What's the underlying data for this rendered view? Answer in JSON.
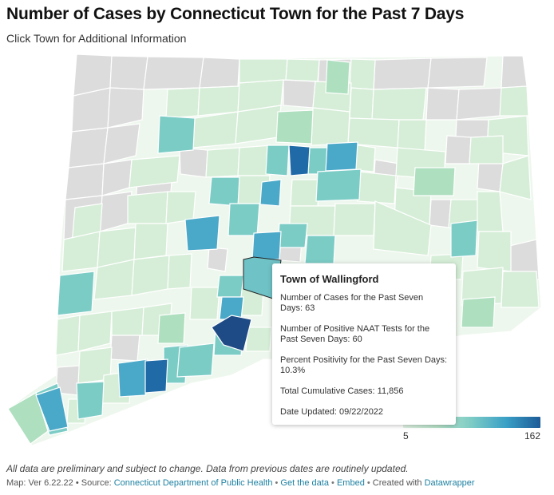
{
  "header": {
    "title": "Number of Cases by Connecticut Town for the Past 7 Days",
    "subtitle": "Click Town for Additional Information"
  },
  "legend": {
    "min_label": "5",
    "max_label": "162",
    "colors": [
      "#dff2e3",
      "#b7e3c9",
      "#7ccbc5",
      "#3aa0c6",
      "#1d5b98"
    ]
  },
  "tooltip": {
    "town": "Town of Wallingford",
    "cases_label": "Number of Cases for the Past Seven Days: 63",
    "naat_label": "Number of Positive NAAT Tests for the Past Seven Days: 60",
    "positivity_label": "Percent Positivity for the Past Seven Days: 10.3%",
    "cumulative_label": "Total Cumulative Cases: 11,856",
    "updated_label": "Date Updated: 09/22/2022"
  },
  "footnote": "All data are preliminary and subject to change. Data from previous dates are routinely updated.",
  "footer": {
    "prefix": "Map: Ver 6.22.22 • Source: ",
    "source_link": "Connecticut Department of Public Health",
    "get_data_link": "Get the data",
    "embed_link": "Embed",
    "created_with": "Created with ",
    "datawrapper_link": "Datawrapper"
  },
  "map": {
    "region": "Connecticut",
    "highlighted_town": "Wallingford",
    "no_data_color": "#dcdcdc"
  }
}
